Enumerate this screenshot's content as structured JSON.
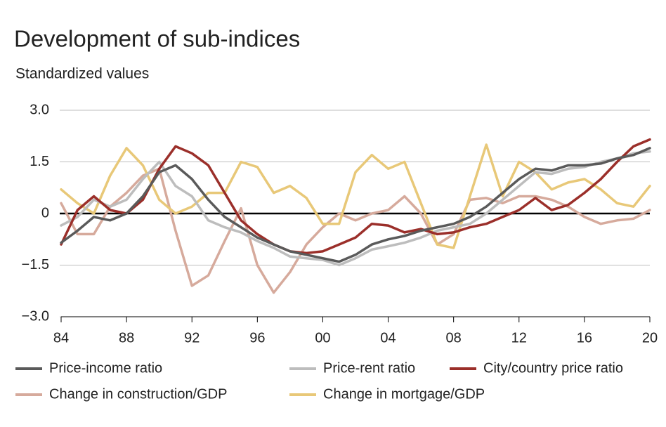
{
  "chart_data": {
    "type": "line",
    "title": "Development of sub-indices",
    "subtitle": "Standardized values",
    "x": [
      1984,
      1985,
      1986,
      1987,
      1988,
      1989,
      1990,
      1991,
      1992,
      1993,
      1994,
      1995,
      1996,
      1997,
      1998,
      1999,
      2000,
      2001,
      2002,
      2003,
      2004,
      2005,
      2006,
      2007,
      2008,
      2009,
      2010,
      2011,
      2012,
      2013,
      2014,
      2015,
      2016,
      2017,
      2018,
      2019,
      2020
    ],
    "xlim": [
      1984,
      2020
    ],
    "xticks": [
      {
        "value": 1984,
        "label": "84"
      },
      {
        "value": 1988,
        "label": "88"
      },
      {
        "value": 1992,
        "label": "92"
      },
      {
        "value": 1996,
        "label": "96"
      },
      {
        "value": 2000,
        "label": "00"
      },
      {
        "value": 2004,
        "label": "04"
      },
      {
        "value": 2008,
        "label": "08"
      },
      {
        "value": 2012,
        "label": "12"
      },
      {
        "value": 2016,
        "label": "16"
      },
      {
        "value": 2020,
        "label": "20"
      }
    ],
    "ylim": [
      -3,
      3
    ],
    "yticks": [
      {
        "value": 3,
        "label": "3.0"
      },
      {
        "value": 1.5,
        "label": "1.5"
      },
      0,
      {
        "value": -1.5,
        "label": "−1.5"
      },
      {
        "value": -3,
        "label": "−3.0"
      }
    ],
    "grid": true,
    "series": [
      {
        "name": "Price-income ratio",
        "color": "#5a5a5a",
        "values": [
          -0.85,
          -0.5,
          -0.1,
          -0.2,
          0.0,
          0.5,
          1.2,
          1.4,
          1.0,
          0.4,
          -0.1,
          -0.4,
          -0.7,
          -0.9,
          -1.1,
          -1.2,
          -1.3,
          -1.4,
          -1.2,
          -0.9,
          -0.75,
          -0.65,
          -0.5,
          -0.4,
          -0.3,
          -0.1,
          0.2,
          0.6,
          1.0,
          1.3,
          1.25,
          1.4,
          1.4,
          1.45,
          1.6,
          1.7,
          1.9
        ]
      },
      {
        "name": "Price-rent ratio",
        "color": "#bdbdbd",
        "values": [
          -0.35,
          -0.1,
          0.4,
          0.2,
          0.4,
          1.0,
          1.5,
          0.8,
          0.5,
          -0.2,
          -0.4,
          -0.55,
          -0.8,
          -1.0,
          -1.25,
          -1.3,
          -1.35,
          -1.5,
          -1.3,
          -1.05,
          -0.95,
          -0.85,
          -0.7,
          -0.5,
          -0.4,
          -0.3,
          0.0,
          0.4,
          0.8,
          1.2,
          1.15,
          1.3,
          1.35,
          1.5,
          1.6,
          1.75,
          1.8
        ]
      },
      {
        "name": "City/country price ratio",
        "color": "#9b2f2a",
        "values": [
          -0.9,
          0.1,
          0.5,
          0.1,
          0.0,
          0.4,
          1.3,
          1.95,
          1.75,
          1.4,
          0.6,
          -0.2,
          -0.6,
          -0.9,
          -1.1,
          -1.15,
          -1.1,
          -0.9,
          -0.7,
          -0.3,
          -0.35,
          -0.55,
          -0.45,
          -0.6,
          -0.55,
          -0.4,
          -0.3,
          -0.1,
          0.1,
          0.45,
          0.1,
          0.25,
          0.6,
          1.0,
          1.5,
          1.95,
          2.15
        ]
      },
      {
        "name": "Change in construction/GDP",
        "color": "#d6aa9c",
        "values": [
          0.3,
          -0.6,
          -0.6,
          0.2,
          0.6,
          1.1,
          1.3,
          -0.5,
          -2.1,
          -1.8,
          -0.8,
          0.15,
          -1.5,
          -2.3,
          -1.7,
          -0.9,
          -0.4,
          0.0,
          -0.2,
          0.0,
          0.1,
          0.5,
          0.0,
          -0.9,
          -0.6,
          0.4,
          0.45,
          0.3,
          0.5,
          0.5,
          0.4,
          0.2,
          -0.1,
          -0.3,
          -0.2,
          -0.15,
          0.1
        ]
      },
      {
        "name": "Change in mortgage/GDP",
        "color": "#e8c878",
        "values": [
          0.7,
          0.3,
          0.0,
          1.1,
          1.9,
          1.4,
          0.4,
          0.0,
          0.2,
          0.6,
          0.6,
          1.5,
          1.35,
          0.6,
          0.8,
          0.45,
          -0.3,
          -0.3,
          1.2,
          1.7,
          1.3,
          1.5,
          0.3,
          -0.9,
          -1.0,
          0.5,
          2.0,
          0.5,
          1.5,
          1.2,
          0.7,
          0.9,
          1.0,
          0.7,
          0.3,
          0.2,
          0.8
        ]
      }
    ]
  }
}
